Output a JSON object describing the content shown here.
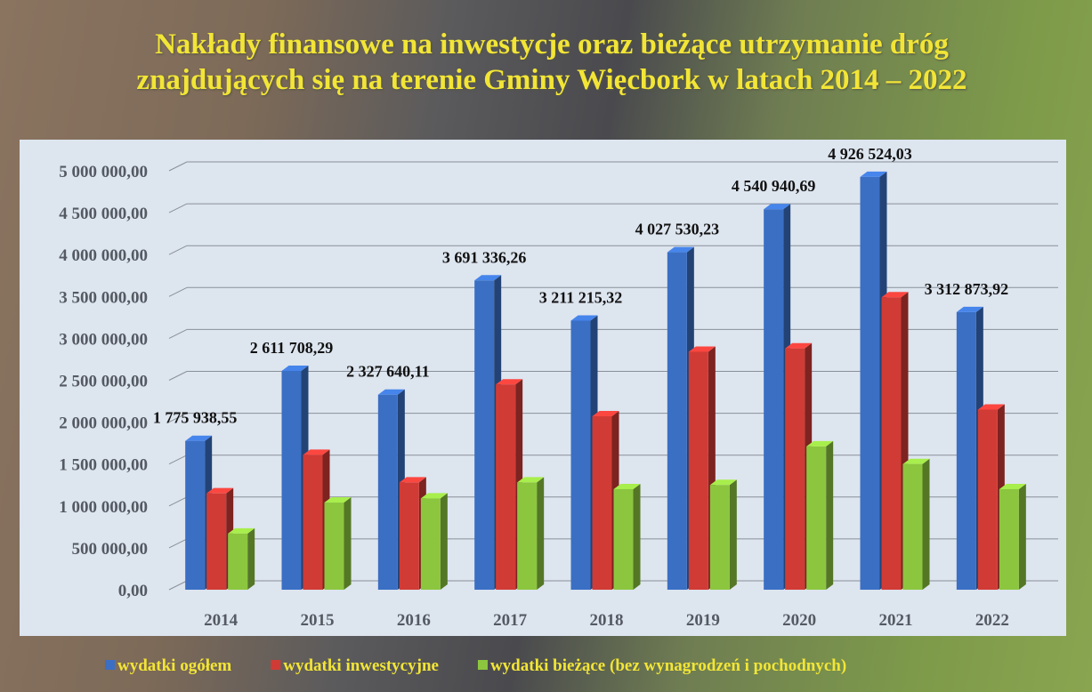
{
  "chart_data": {
    "type": "bar3d",
    "title": "Nakłady finansowe na inwestycje oraz bieżące utrzymanie dróg znajdujących się na terenie Gminy Więcbork w latach 2014 – 2022",
    "categories": [
      "2014",
      "2015",
      "2016",
      "2017",
      "2018",
      "2019",
      "2020",
      "2021",
      "2022"
    ],
    "series": [
      {
        "name": "wydatki ogółem",
        "color": "#3a6fc4",
        "values": [
          1775938.55,
          2611708.29,
          2327640.11,
          3691336.26,
          3211215.32,
          4027530.23,
          4540940.69,
          4926524.03,
          3312873.92
        ],
        "value_labels": [
          "1 775 938,55",
          "2 611 708,29",
          "2 327 640,11",
          "3 691 336,26",
          "3 211 215,32",
          "4 027 530,23",
          "4 540 940,69",
          "4 926 524,03",
          "3 312 873,92"
        ]
      },
      {
        "name": "wydatki inwestycyjne",
        "color": "#d13b35",
        "values": [
          1150000,
          1610000,
          1280000,
          2450000,
          2070000,
          2840000,
          2880000,
          3490000,
          2150000
        ]
      },
      {
        "name": "wydatki bieżące (bez wynagrodzeń i pochodnych)",
        "color": "#8cc63f",
        "values": [
          670000,
          1040000,
          1090000,
          1280000,
          1200000,
          1250000,
          1710000,
          1500000,
          1200000
        ]
      }
    ],
    "ylim": [
      0,
      5000000
    ],
    "yticks": [
      {
        "value": 0,
        "label": "0,00"
      },
      {
        "value": 500000,
        "label": "500 000,00"
      },
      {
        "value": 1000000,
        "label": "1 000 000,00"
      },
      {
        "value": 1500000,
        "label": "1 500 000,00"
      },
      {
        "value": 2000000,
        "label": "2 000 000,00"
      },
      {
        "value": 2500000,
        "label": "2 500 000,00"
      },
      {
        "value": 3000000,
        "label": "3 000 000,00"
      },
      {
        "value": 3500000,
        "label": "3 500 000,00"
      },
      {
        "value": 4000000,
        "label": "4 000 000,00"
      },
      {
        "value": 4500000,
        "label": "4 500 000,00"
      },
      {
        "value": 5000000,
        "label": "5 000 000,00"
      }
    ],
    "grid": true
  }
}
